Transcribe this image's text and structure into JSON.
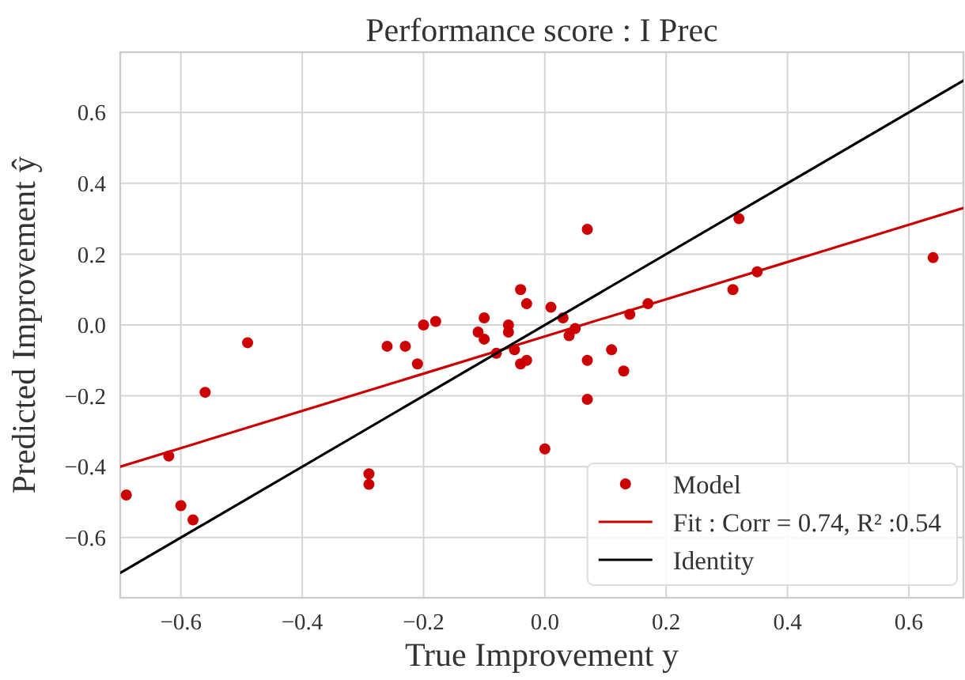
{
  "chart_data": {
    "type": "scatter",
    "title": "Performance score : I Prec",
    "xlabel": "True Improvement y",
    "ylabel": "Predicted Improvement ŷ",
    "xlim": [
      -0.7,
      0.69
    ],
    "ylim": [
      -0.77,
      0.77
    ],
    "xticks": [
      {
        "value": -0.6,
        "label": "−0.6"
      },
      {
        "value": -0.4,
        "label": "−0.4"
      },
      {
        "value": -0.2,
        "label": "−0.2"
      },
      {
        "value": 0,
        "label": "0.0"
      },
      0.2,
      0.4,
      0.6
    ],
    "yticks": [
      {
        "value": -0.6,
        "label": "−0.6"
      },
      {
        "value": -0.4,
        "label": "−0.4"
      },
      {
        "value": -0.2,
        "label": "−0.2"
      },
      {
        "value": 0,
        "label": "0.0"
      },
      0.2,
      0.4,
      0.6
    ],
    "grid": true,
    "legend": "bottom right",
    "series": [
      {
        "name": "Model",
        "marker": "circle",
        "color": "#cc0000",
        "x": [
          -0.69,
          -0.62,
          -0.6,
          -0.58,
          -0.56,
          -0.49,
          -0.29,
          -0.29,
          -0.26,
          -0.23,
          -0.21,
          -0.2,
          -0.18,
          -0.11,
          -0.1,
          -0.1,
          -0.08,
          -0.06,
          -0.06,
          -0.05,
          -0.04,
          -0.04,
          -0.03,
          -0.03,
          0.0,
          0.01,
          0.03,
          0.04,
          0.05,
          0.07,
          0.07,
          0.07,
          0.11,
          0.13,
          0.14,
          0.17,
          0.31,
          0.32,
          0.35,
          0.64
        ],
        "values": [
          -0.48,
          -0.37,
          -0.51,
          -0.55,
          -0.19,
          -0.05,
          -0.42,
          -0.45,
          -0.06,
          -0.06,
          -0.11,
          0.0,
          0.01,
          -0.02,
          -0.04,
          0.02,
          -0.08,
          0.0,
          -0.02,
          -0.07,
          -0.11,
          0.1,
          0.06,
          -0.1,
          -0.35,
          0.05,
          0.02,
          -0.03,
          -0.01,
          0.27,
          -0.1,
          -0.21,
          -0.07,
          -0.13,
          0.03,
          0.06,
          0.1,
          0.3,
          0.15,
          0.19
        ]
      },
      {
        "name": "Fit : Corr = 0.74, R² :0.54",
        "type": "line",
        "color": "#cc0000",
        "x": [
          -0.7,
          0.69
        ],
        "values": [
          -0.4,
          0.33
        ]
      },
      {
        "name": "Identity",
        "type": "line",
        "color": "#000000",
        "x": [
          -0.7,
          0.69
        ],
        "values": [
          -0.7,
          0.69
        ]
      }
    ]
  }
}
